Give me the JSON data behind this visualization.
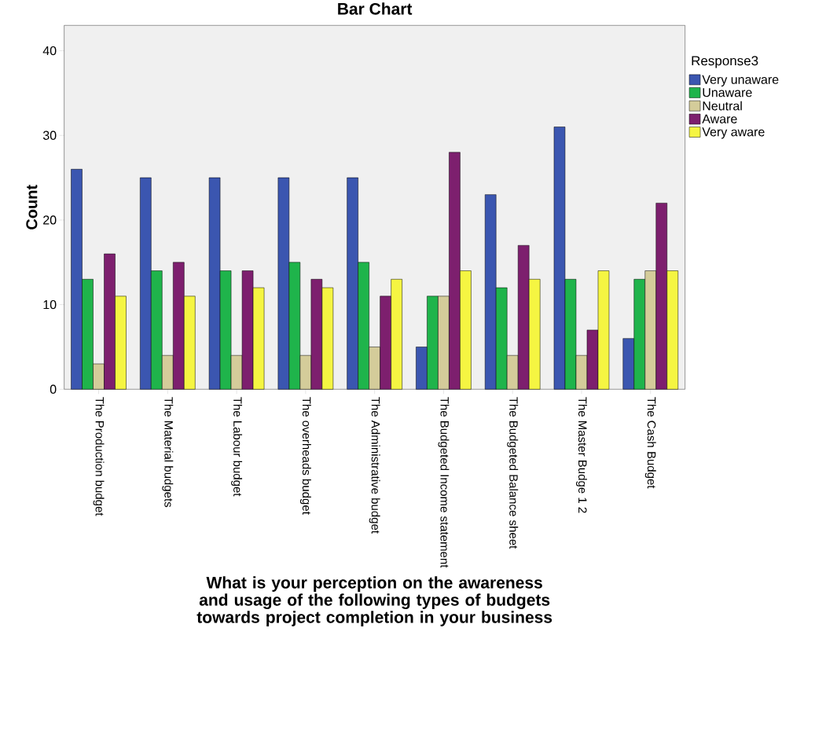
{
  "chart_data": {
    "type": "bar",
    "title": "Bar Chart",
    "xlabel": "What is your perception on the awareness and usage of the following types of budgets towards project completion in your business",
    "ylabel": "Count",
    "legend_title": "Response3",
    "legend": "right",
    "categories": [
      "The Production budget",
      "The Material budgets",
      "The Labour budget",
      "The overheads budget",
      "The Administrative budget",
      "The Budgeted Income statement",
      "The Budgeted Balance sheet",
      "The Master Budge 1 2",
      "The Cash Budget"
    ],
    "ylim": [
      0,
      43
    ],
    "yticks": [
      0,
      10,
      20,
      30,
      40
    ],
    "grid": false,
    "series": [
      {
        "name": "Very unaware",
        "color": "#3b56b0",
        "values": [
          26,
          25,
          25,
          25,
          25,
          5,
          23,
          31,
          6
        ]
      },
      {
        "name": "Unaware",
        "color": "#1fb44b",
        "values": [
          13,
          14,
          14,
          15,
          15,
          11,
          12,
          13,
          13
        ]
      },
      {
        "name": "Neutral",
        "color": "#d4cc9a",
        "values": [
          3,
          4,
          4,
          4,
          5,
          11,
          4,
          4,
          14
        ]
      },
      {
        "name": "Aware",
        "color": "#7d1f6e",
        "values": [
          16,
          15,
          14,
          13,
          11,
          28,
          17,
          7,
          22
        ]
      },
      {
        "name": "Very aware",
        "color": "#f5f542",
        "values": [
          11,
          11,
          12,
          12,
          13,
          14,
          13,
          14,
          14
        ]
      }
    ]
  }
}
